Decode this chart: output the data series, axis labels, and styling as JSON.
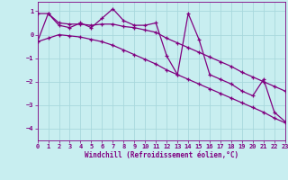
{
  "x": [
    0,
    1,
    2,
    3,
    4,
    5,
    6,
    7,
    8,
    9,
    10,
    11,
    12,
    13,
    14,
    15,
    16,
    17,
    18,
    19,
    20,
    21,
    22,
    23
  ],
  "windchill": [
    -0.3,
    0.9,
    0.4,
    0.3,
    0.5,
    0.3,
    0.7,
    1.1,
    0.6,
    0.4,
    0.4,
    0.5,
    -0.9,
    -1.7,
    0.9,
    -0.2,
    -1.7,
    -1.9,
    -2.1,
    -2.4,
    -2.6,
    -1.9,
    -3.3,
    -3.7
  ],
  "smooth": [
    0.9,
    0.9,
    0.5,
    0.45,
    0.45,
    0.4,
    0.45,
    0.45,
    0.35,
    0.3,
    0.2,
    0.1,
    -0.15,
    -0.35,
    -0.55,
    -0.75,
    -0.95,
    -1.15,
    -1.35,
    -1.6,
    -1.8,
    -2.0,
    -2.2,
    -2.4
  ],
  "trend": [
    -0.3,
    -0.15,
    0.0,
    -0.05,
    -0.1,
    -0.2,
    -0.3,
    -0.45,
    -0.65,
    -0.85,
    -1.05,
    -1.25,
    -1.5,
    -1.7,
    -1.9,
    -2.1,
    -2.3,
    -2.5,
    -2.7,
    -2.9,
    -3.1,
    -3.3,
    -3.55,
    -3.75
  ],
  "bg_color": "#c8eef0",
  "line_color": "#800080",
  "grid_color": "#a8d8dc",
  "xlabel": "Windchill (Refroidissement éolien,°C)",
  "xlim": [
    0,
    23
  ],
  "ylim": [
    -4.5,
    1.4
  ],
  "xticks": [
    0,
    1,
    2,
    3,
    4,
    5,
    6,
    7,
    8,
    9,
    10,
    11,
    12,
    13,
    14,
    15,
    16,
    17,
    18,
    19,
    20,
    21,
    22,
    23
  ],
  "yticks": [
    -4,
    -3,
    -2,
    -1,
    0,
    1
  ]
}
